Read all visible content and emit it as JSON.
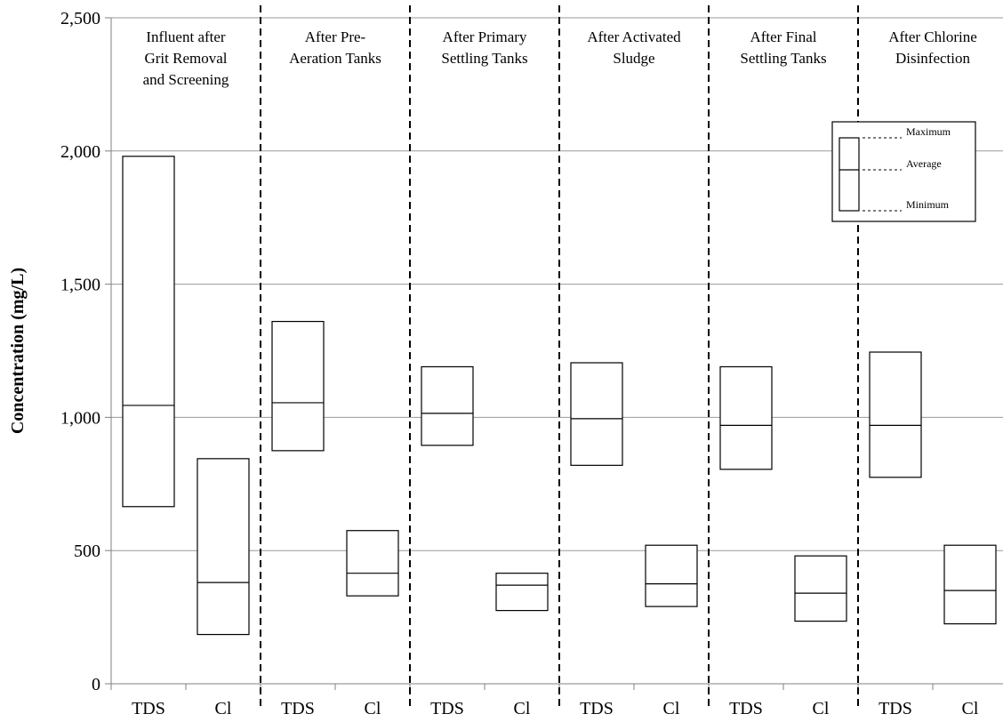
{
  "chart_data": {
    "type": "range-box",
    "ylabel": "Concentration (mg/L)",
    "ylim": [
      0,
      2500
    ],
    "yticks": [
      0,
      500,
      1000,
      1500,
      2000,
      2500
    ],
    "ytick_labels": [
      "0",
      "500",
      "1,000",
      "1,500",
      "2,000",
      "2,500"
    ],
    "grid": true,
    "series_labels": [
      "TDS",
      "Cl"
    ],
    "groups": [
      {
        "title_lines": [
          "Influent after",
          "Grit Removal",
          "and Screening"
        ],
        "boxes": [
          {
            "label": "TDS",
            "min": 665,
            "avg": 1045,
            "max": 1980
          },
          {
            "label": "Cl",
            "min": 185,
            "avg": 380,
            "max": 845
          }
        ]
      },
      {
        "title_lines": [
          "After Pre-",
          "Aeration Tanks"
        ],
        "boxes": [
          {
            "label": "TDS",
            "min": 875,
            "avg": 1055,
            "max": 1360
          },
          {
            "label": "Cl",
            "min": 330,
            "avg": 415,
            "max": 575
          }
        ]
      },
      {
        "title_lines": [
          "After Primary",
          "Settling Tanks"
        ],
        "boxes": [
          {
            "label": "TDS",
            "min": 895,
            "avg": 1015,
            "max": 1190
          },
          {
            "label": "Cl",
            "min": 275,
            "avg": 370,
            "max": 415
          }
        ]
      },
      {
        "title_lines": [
          "After Activated",
          "Sludge"
        ],
        "boxes": [
          {
            "label": "TDS",
            "min": 820,
            "avg": 995,
            "max": 1205
          },
          {
            "label": "Cl",
            "min": 290,
            "avg": 375,
            "max": 520
          }
        ]
      },
      {
        "title_lines": [
          "After Final",
          "Settling Tanks"
        ],
        "boxes": [
          {
            "label": "TDS",
            "min": 805,
            "avg": 970,
            "max": 1190
          },
          {
            "label": "Cl",
            "min": 235,
            "avg": 340,
            "max": 480
          }
        ]
      },
      {
        "title_lines": [
          "After Chlorine",
          "Disinfection"
        ],
        "boxes": [
          {
            "label": "TDS",
            "min": 775,
            "avg": 970,
            "max": 1245
          },
          {
            "label": "Cl",
            "min": 225,
            "avg": 350,
            "max": 520
          }
        ]
      }
    ],
    "legend": {
      "position": "top-right",
      "labels": [
        "Maximum",
        "Average",
        "Minimum"
      ]
    }
  }
}
